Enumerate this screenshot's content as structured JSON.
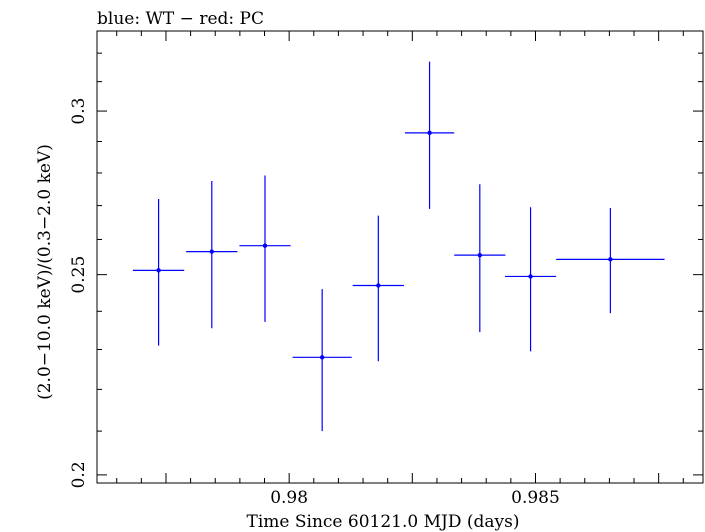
{
  "chart_data": {
    "type": "scatter",
    "title": "blue: WT − red: PC",
    "xlabel": "Time Since 60121.0 MJD (days)",
    "ylabel": "(2.0−10.0 keV)/(0.3−2.0 keV)",
    "xlim": [
      0.9761,
      0.9884
    ],
    "ylim": [
      0.1982,
      0.328
    ],
    "log_y": true,
    "grid": false,
    "x_ticks": [
      {
        "value": 0.98,
        "label": "0.98"
      },
      {
        "value": 0.985,
        "label": "0.985"
      }
    ],
    "y_ticks": [
      {
        "value": 0.2,
        "label": "0.2"
      },
      {
        "value": 0.25,
        "label": "0.25"
      },
      {
        "value": 0.3,
        "label": "0.3"
      }
    ],
    "series": [
      {
        "color": "#0000ff",
        "points": [
          {
            "x": 0.97735,
            "xerr": 0.00052,
            "y": 0.2512,
            "ylo": 0.231,
            "yhi": 0.272
          },
          {
            "x": 0.97843,
            "xerr": 0.00052,
            "y": 0.2565,
            "ylo": 0.2355,
            "yhi": 0.2775
          },
          {
            "x": 0.97951,
            "xerr": 0.00052,
            "y": 0.2582,
            "ylo": 0.2372,
            "yhi": 0.2792
          },
          {
            "x": 0.98067,
            "xerr": 0.0006,
            "y": 0.228,
            "ylo": 0.21,
            "yhi": 0.246
          },
          {
            "x": 0.98181,
            "xerr": 0.00052,
            "y": 0.247,
            "ylo": 0.227,
            "yhi": 0.267
          },
          {
            "x": 0.98285,
            "xerr": 0.0005,
            "y": 0.2928,
            "ylo": 0.269,
            "yhi": 0.317
          },
          {
            "x": 0.98387,
            "xerr": 0.00052,
            "y": 0.2555,
            "ylo": 0.2345,
            "yhi": 0.2765
          },
          {
            "x": 0.9849,
            "xerr": 0.00052,
            "y": 0.2495,
            "ylo": 0.2295,
            "yhi": 0.2695
          },
          {
            "x": 0.98652,
            "xerr": 0.0011,
            "y": 0.2543,
            "ylo": 0.2395,
            "yhi": 0.2693
          }
        ]
      }
    ]
  }
}
